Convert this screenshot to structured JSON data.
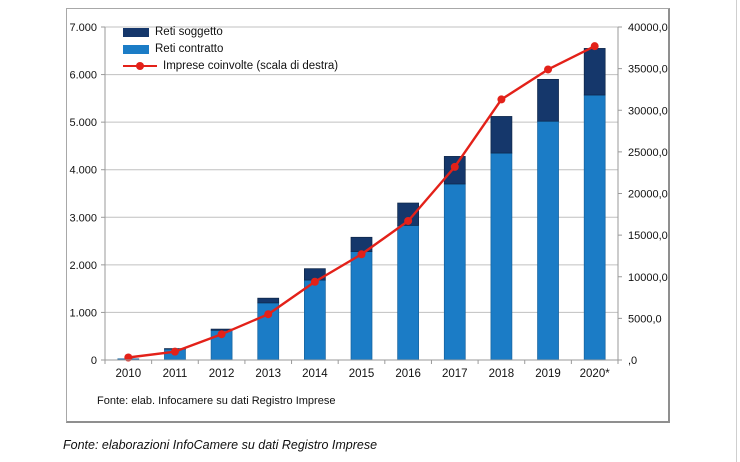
{
  "caption": "Fonte: elaborazioni InfoCamere su dati Registro Imprese",
  "chart": {
    "source_note": "Fonte: elab. Infocamere su dati Registro Imprese",
    "legend": [
      {
        "label": "Reti soggetto",
        "sample": "swatch",
        "color": "#15376b"
      },
      {
        "label": "Reti contratto",
        "sample": "swatch",
        "color": "#1b7cc6"
      },
      {
        "label": "Imprese coinvolte (scala di destra)",
        "sample": "line-marker",
        "color": "#e32119"
      }
    ]
  },
  "chart_data": {
    "type": "bar",
    "subtype": "stacked-bars-with-line",
    "categories": [
      "2010",
      "2011",
      "2012",
      "2013",
      "2014",
      "2015",
      "2016",
      "2017",
      "2018",
      "2019",
      "2020*"
    ],
    "series": [
      {
        "name": "Reti soggetto",
        "render": "bar-stacked-top",
        "axis": "left",
        "color": "#15376b",
        "edge_color": "#0d2547",
        "values": [
          0,
          10,
          25,
          100,
          240,
          300,
          470,
          580,
          770,
          880,
          980
        ]
      },
      {
        "name": "Reti contratto",
        "render": "bar-stacked-bottom",
        "axis": "left",
        "color": "#1b7cc6",
        "edge_color": "#15619c",
        "values": [
          25,
          230,
          625,
          1200,
          1680,
          2280,
          2830,
          3700,
          4350,
          5020,
          5570
        ]
      },
      {
        "name": "Imprese coinvolte (scala di destra)",
        "render": "line",
        "axis": "right",
        "color": "#e32119",
        "values": [
          300,
          1000,
          3100,
          5500,
          9400,
          12700,
          16700,
          23200,
          31300,
          34900,
          37700
        ]
      }
    ],
    "left_axis": {
      "min": 0,
      "max": 7000,
      "step": 1000,
      "tick_labels": [
        "0",
        "1.000",
        "2.000",
        "3.000",
        "4.000",
        "5.000",
        "6.000",
        "7.000"
      ]
    },
    "right_axis": {
      "min": 0,
      "max": 40000,
      "step": 5000,
      "tick_labels": [
        ",0",
        "5000,0",
        "10000,0",
        "15000,0",
        "20000,0",
        "25000,0",
        "30000,0",
        "35000,0",
        "40000,0"
      ]
    },
    "grid": "horizontal",
    "gridline_color": "#c0c0c0",
    "axis_line_color": "#9a9a9a",
    "legend_position": "top-left-inside",
    "title": "",
    "xlabel": "",
    "ylabel": ""
  }
}
